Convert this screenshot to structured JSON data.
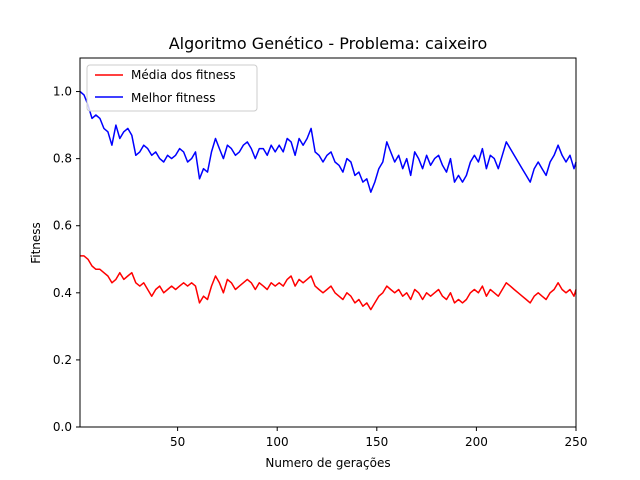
{
  "chart_data": {
    "type": "line",
    "title": "Algoritmo Genético - Problema: caixeiro",
    "xlabel": "Numero de gerações",
    "ylabel": "Fitness",
    "xlim": [
      1,
      250
    ],
    "ylim": [
      0.0,
      1.1
    ],
    "xticks": [
      50,
      100,
      150,
      200,
      250
    ],
    "yticks": [
      0.0,
      0.2,
      0.4,
      0.6,
      0.8,
      1.0
    ],
    "xtick_labels": [
      "50",
      "100",
      "150",
      "200",
      "250"
    ],
    "ytick_labels": [
      "0.0",
      "0.2",
      "0.4",
      "0.6",
      "0.8",
      "1.0"
    ],
    "grid": false,
    "legend_position": "top-left",
    "series": [
      {
        "name": "Média dos fitness",
        "color": "#ff0000",
        "points": [
          [
            1,
            0.51
          ],
          [
            3,
            0.51
          ],
          [
            5,
            0.5
          ],
          [
            7,
            0.48
          ],
          [
            9,
            0.47
          ],
          [
            11,
            0.47
          ],
          [
            13,
            0.46
          ],
          [
            15,
            0.45
          ],
          [
            17,
            0.43
          ],
          [
            19,
            0.44
          ],
          [
            21,
            0.46
          ],
          [
            23,
            0.44
          ],
          [
            25,
            0.45
          ],
          [
            27,
            0.46
          ],
          [
            29,
            0.43
          ],
          [
            31,
            0.42
          ],
          [
            33,
            0.43
          ],
          [
            35,
            0.41
          ],
          [
            37,
            0.39
          ],
          [
            39,
            0.41
          ],
          [
            41,
            0.42
          ],
          [
            43,
            0.4
          ],
          [
            45,
            0.41
          ],
          [
            47,
            0.42
          ],
          [
            49,
            0.41
          ],
          [
            51,
            0.42
          ],
          [
            53,
            0.43
          ],
          [
            55,
            0.42
          ],
          [
            57,
            0.43
          ],
          [
            59,
            0.42
          ],
          [
            61,
            0.37
          ],
          [
            63,
            0.39
          ],
          [
            65,
            0.38
          ],
          [
            67,
            0.42
          ],
          [
            69,
            0.45
          ],
          [
            71,
            0.43
          ],
          [
            73,
            0.4
          ],
          [
            75,
            0.44
          ],
          [
            77,
            0.43
          ],
          [
            79,
            0.41
          ],
          [
            81,
            0.42
          ],
          [
            83,
            0.43
          ],
          [
            85,
            0.44
          ],
          [
            87,
            0.43
          ],
          [
            89,
            0.41
          ],
          [
            91,
            0.43
          ],
          [
            93,
            0.42
          ],
          [
            95,
            0.41
          ],
          [
            97,
            0.43
          ],
          [
            99,
            0.42
          ],
          [
            101,
            0.43
          ],
          [
            103,
            0.42
          ],
          [
            105,
            0.44
          ],
          [
            107,
            0.45
          ],
          [
            109,
            0.42
          ],
          [
            111,
            0.44
          ],
          [
            113,
            0.43
          ],
          [
            115,
            0.44
          ],
          [
            117,
            0.45
          ],
          [
            119,
            0.42
          ],
          [
            121,
            0.41
          ],
          [
            123,
            0.4
          ],
          [
            125,
            0.41
          ],
          [
            127,
            0.42
          ],
          [
            129,
            0.4
          ],
          [
            131,
            0.39
          ],
          [
            133,
            0.38
          ],
          [
            135,
            0.4
          ],
          [
            137,
            0.39
          ],
          [
            139,
            0.37
          ],
          [
            141,
            0.38
          ],
          [
            143,
            0.36
          ],
          [
            145,
            0.37
          ],
          [
            147,
            0.35
          ],
          [
            149,
            0.37
          ],
          [
            151,
            0.39
          ],
          [
            153,
            0.4
          ],
          [
            155,
            0.42
          ],
          [
            157,
            0.41
          ],
          [
            159,
            0.4
          ],
          [
            161,
            0.41
          ],
          [
            163,
            0.39
          ],
          [
            165,
            0.4
          ],
          [
            167,
            0.38
          ],
          [
            169,
            0.41
          ],
          [
            171,
            0.4
          ],
          [
            173,
            0.38
          ],
          [
            175,
            0.4
          ],
          [
            177,
            0.39
          ],
          [
            179,
            0.4
          ],
          [
            181,
            0.41
          ],
          [
            183,
            0.39
          ],
          [
            185,
            0.38
          ],
          [
            187,
            0.4
          ],
          [
            189,
            0.37
          ],
          [
            191,
            0.38
          ],
          [
            193,
            0.37
          ],
          [
            195,
            0.38
          ],
          [
            197,
            0.4
          ],
          [
            199,
            0.41
          ],
          [
            201,
            0.4
          ],
          [
            203,
            0.42
          ],
          [
            205,
            0.39
          ],
          [
            207,
            0.41
          ],
          [
            209,
            0.4
          ],
          [
            211,
            0.39
          ],
          [
            213,
            0.41
          ],
          [
            215,
            0.43
          ],
          [
            217,
            0.42
          ],
          [
            219,
            0.41
          ],
          [
            221,
            0.4
          ],
          [
            223,
            0.39
          ],
          [
            225,
            0.38
          ],
          [
            227,
            0.37
          ],
          [
            229,
            0.39
          ],
          [
            231,
            0.4
          ],
          [
            233,
            0.39
          ],
          [
            235,
            0.38
          ],
          [
            237,
            0.4
          ],
          [
            239,
            0.41
          ],
          [
            241,
            0.43
          ],
          [
            243,
            0.41
          ],
          [
            245,
            0.4
          ],
          [
            247,
            0.41
          ],
          [
            249,
            0.39
          ],
          [
            250,
            0.41
          ]
        ]
      },
      {
        "name": "Melhor fitness",
        "color": "#0000ff",
        "points": [
          [
            1,
            1.0
          ],
          [
            3,
            0.99
          ],
          [
            5,
            0.96
          ],
          [
            7,
            0.92
          ],
          [
            9,
            0.93
          ],
          [
            11,
            0.92
          ],
          [
            13,
            0.89
          ],
          [
            15,
            0.88
          ],
          [
            17,
            0.84
          ],
          [
            19,
            0.9
          ],
          [
            21,
            0.86
          ],
          [
            23,
            0.88
          ],
          [
            25,
            0.89
          ],
          [
            27,
            0.87
          ],
          [
            29,
            0.81
          ],
          [
            31,
            0.82
          ],
          [
            33,
            0.84
          ],
          [
            35,
            0.83
          ],
          [
            37,
            0.81
          ],
          [
            39,
            0.82
          ],
          [
            41,
            0.8
          ],
          [
            43,
            0.79
          ],
          [
            45,
            0.81
          ],
          [
            47,
            0.8
          ],
          [
            49,
            0.81
          ],
          [
            51,
            0.83
          ],
          [
            53,
            0.82
          ],
          [
            55,
            0.79
          ],
          [
            57,
            0.8
          ],
          [
            59,
            0.82
          ],
          [
            61,
            0.74
          ],
          [
            63,
            0.77
          ],
          [
            65,
            0.76
          ],
          [
            67,
            0.82
          ],
          [
            69,
            0.86
          ],
          [
            71,
            0.83
          ],
          [
            73,
            0.8
          ],
          [
            75,
            0.84
          ],
          [
            77,
            0.83
          ],
          [
            79,
            0.81
          ],
          [
            81,
            0.82
          ],
          [
            83,
            0.84
          ],
          [
            85,
            0.85
          ],
          [
            87,
            0.83
          ],
          [
            89,
            0.8
          ],
          [
            91,
            0.83
          ],
          [
            93,
            0.83
          ],
          [
            95,
            0.81
          ],
          [
            97,
            0.84
          ],
          [
            99,
            0.82
          ],
          [
            101,
            0.84
          ],
          [
            103,
            0.82
          ],
          [
            105,
            0.86
          ],
          [
            107,
            0.85
          ],
          [
            109,
            0.81
          ],
          [
            111,
            0.86
          ],
          [
            113,
            0.84
          ],
          [
            115,
            0.86
          ],
          [
            117,
            0.89
          ],
          [
            119,
            0.82
          ],
          [
            121,
            0.81
          ],
          [
            123,
            0.79
          ],
          [
            125,
            0.81
          ],
          [
            127,
            0.82
          ],
          [
            129,
            0.79
          ],
          [
            131,
            0.78
          ],
          [
            133,
            0.76
          ],
          [
            135,
            0.8
          ],
          [
            137,
            0.79
          ],
          [
            139,
            0.75
          ],
          [
            141,
            0.76
          ],
          [
            143,
            0.73
          ],
          [
            145,
            0.74
          ],
          [
            147,
            0.7
          ],
          [
            149,
            0.73
          ],
          [
            151,
            0.77
          ],
          [
            153,
            0.79
          ],
          [
            155,
            0.85
          ],
          [
            157,
            0.82
          ],
          [
            159,
            0.79
          ],
          [
            161,
            0.81
          ],
          [
            163,
            0.77
          ],
          [
            165,
            0.8
          ],
          [
            167,
            0.75
          ],
          [
            169,
            0.82
          ],
          [
            171,
            0.8
          ],
          [
            173,
            0.77
          ],
          [
            175,
            0.81
          ],
          [
            177,
            0.78
          ],
          [
            179,
            0.8
          ],
          [
            181,
            0.81
          ],
          [
            183,
            0.78
          ],
          [
            185,
            0.76
          ],
          [
            187,
            0.8
          ],
          [
            189,
            0.73
          ],
          [
            191,
            0.75
          ],
          [
            193,
            0.73
          ],
          [
            195,
            0.75
          ],
          [
            197,
            0.79
          ],
          [
            199,
            0.81
          ],
          [
            201,
            0.79
          ],
          [
            203,
            0.83
          ],
          [
            205,
            0.77
          ],
          [
            207,
            0.81
          ],
          [
            209,
            0.8
          ],
          [
            211,
            0.77
          ],
          [
            213,
            0.81
          ],
          [
            215,
            0.85
          ],
          [
            217,
            0.83
          ],
          [
            219,
            0.81
          ],
          [
            221,
            0.79
          ],
          [
            223,
            0.77
          ],
          [
            225,
            0.75
          ],
          [
            227,
            0.73
          ],
          [
            229,
            0.77
          ],
          [
            231,
            0.79
          ],
          [
            233,
            0.77
          ],
          [
            235,
            0.75
          ],
          [
            237,
            0.79
          ],
          [
            239,
            0.81
          ],
          [
            241,
            0.84
          ],
          [
            243,
            0.81
          ],
          [
            245,
            0.79
          ],
          [
            247,
            0.81
          ],
          [
            249,
            0.77
          ],
          [
            250,
            0.79
          ]
        ]
      }
    ]
  }
}
